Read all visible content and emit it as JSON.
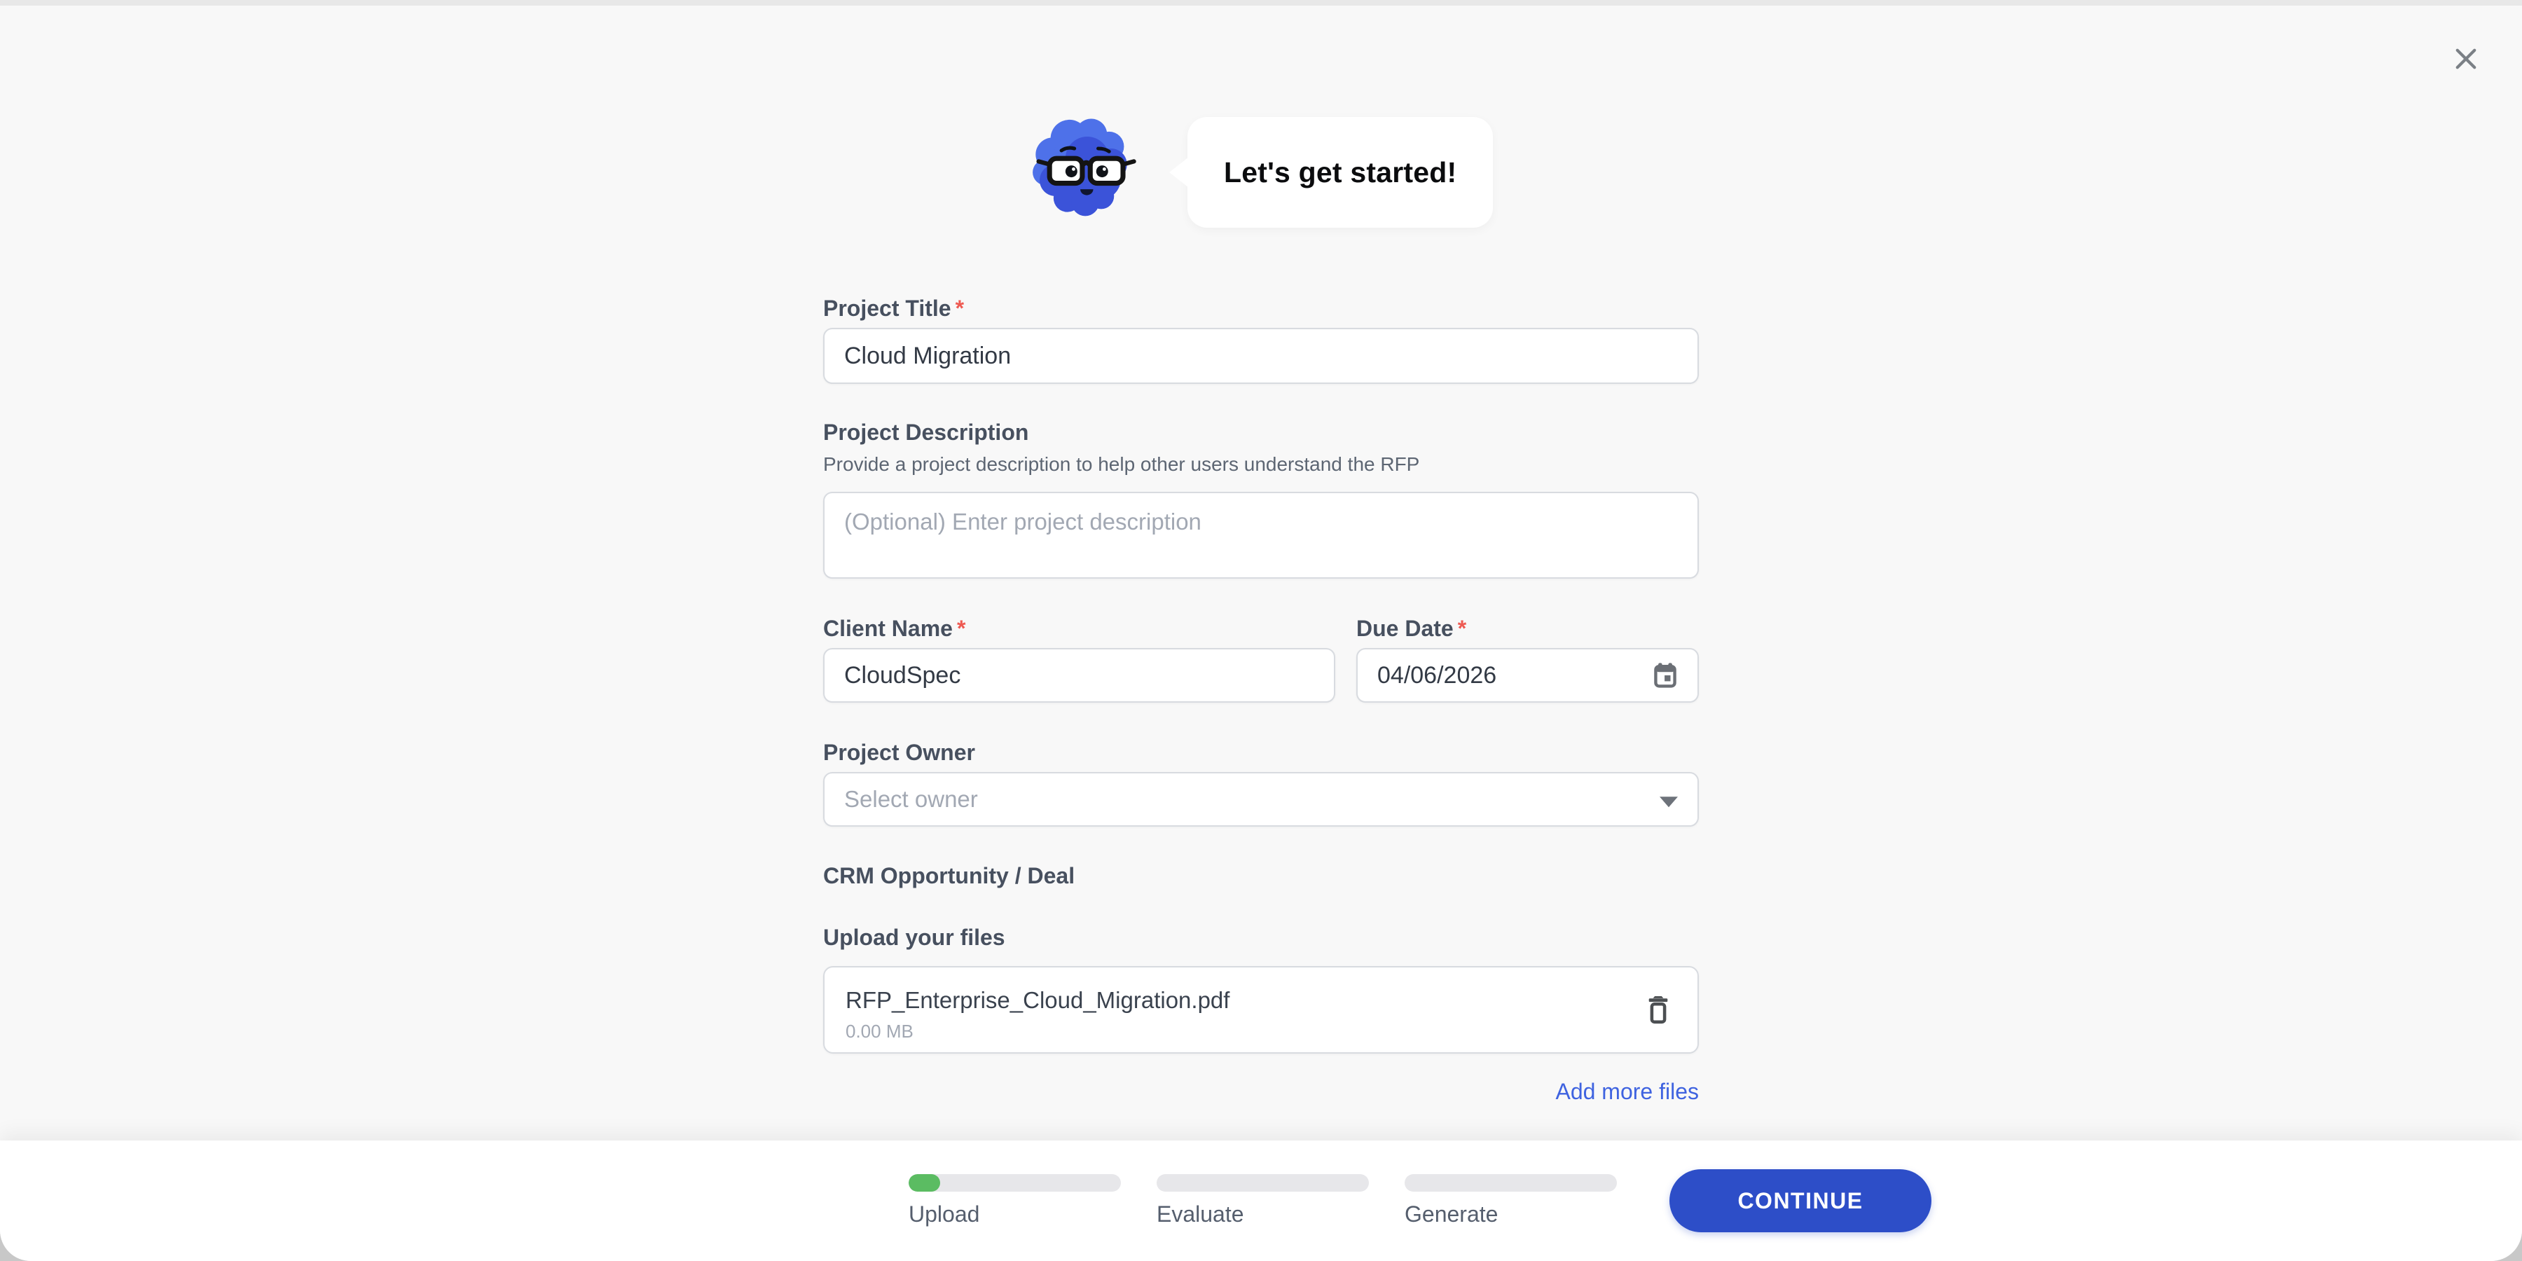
{
  "ui": {
    "required_marker": "*"
  },
  "assistant": {
    "greeting": "Let's get started!"
  },
  "form": {
    "project_title": {
      "label": "Project Title",
      "required": true,
      "value": "Cloud Migration"
    },
    "project_description": {
      "label": "Project Description",
      "helper": "Provide a project description to help other users understand the RFP",
      "placeholder": "(Optional) Enter project description",
      "value": ""
    },
    "client_name": {
      "label": "Client Name",
      "required": true,
      "value": "CloudSpec"
    },
    "due_date": {
      "label": "Due Date",
      "required": true,
      "value": "04/06/2026"
    },
    "project_owner": {
      "label": "Project Owner",
      "placeholder": "Select owner"
    },
    "crm": {
      "label": "CRM Opportunity / Deal"
    },
    "upload": {
      "label": "Upload your files",
      "files": [
        {
          "name": "RFP_Enterprise_Cloud_Migration.pdf",
          "size": "0.00 MB"
        }
      ],
      "add_more_label": "Add more files"
    }
  },
  "footer": {
    "steps": [
      {
        "label": "Upload",
        "progress": 15,
        "active": true
      },
      {
        "label": "Evaluate",
        "progress": 0,
        "active": false
      },
      {
        "label": "Generate",
        "progress": 0,
        "active": false
      }
    ],
    "continue_label": "CONTINUE"
  },
  "colors": {
    "modal_background": "#f8f8f8",
    "accent_blue": "#2d4ec8",
    "link_blue": "#3f63e0",
    "progress_green": "#5bbc62",
    "required_red": "#ee5a52",
    "mascot_blue_light": "#4e71e9",
    "mascot_blue_dark": "#3b53d9"
  }
}
